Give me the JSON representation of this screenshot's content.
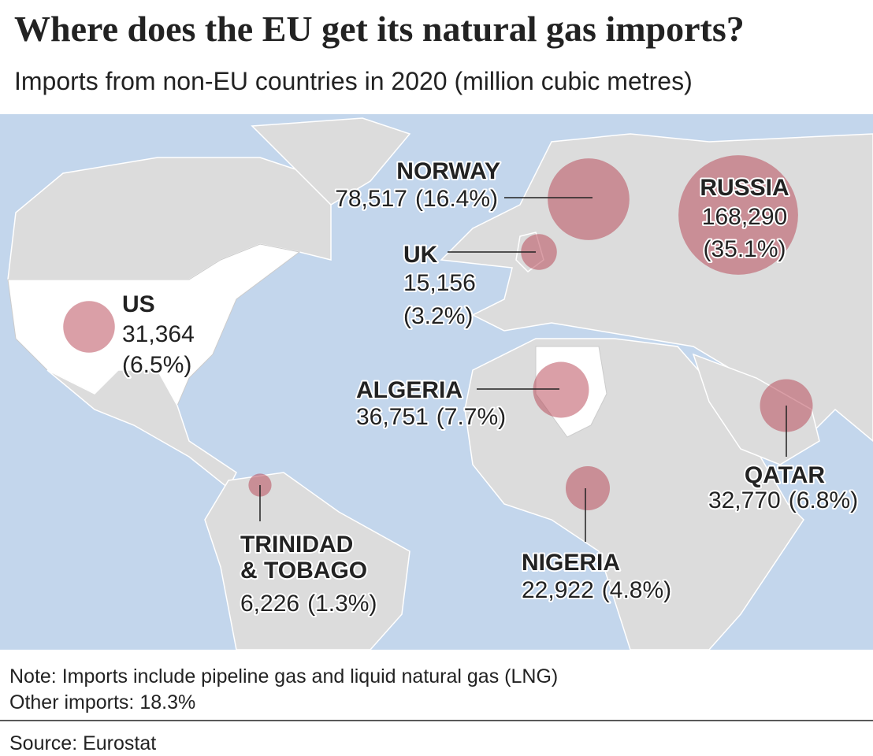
{
  "header": {
    "title": "Where does the EU get its natural gas imports?",
    "subtitle": "Imports from non-EU countries in 2020 (million cubic metres)"
  },
  "map": {
    "bubble_color": "#b5404f",
    "countries": [
      {
        "name": [
          "NORWAY"
        ],
        "value": 78517,
        "amount": "78,517",
        "share": "(16.4%)"
      },
      {
        "name": [
          "RUSSIA"
        ],
        "value": 168290,
        "amount": "168,290",
        "share": "(35.1%)"
      },
      {
        "name": [
          "UK"
        ],
        "value": 15156,
        "amount": "15,156",
        "share": "(3.2%)"
      },
      {
        "name": [
          "US"
        ],
        "value": 31364,
        "amount": "31,364",
        "share": "(6.5%)"
      },
      {
        "name": [
          "ALGERIA"
        ],
        "value": 36751,
        "amount": "36,751",
        "share": "(7.7%)"
      },
      {
        "name": [
          "QATAR"
        ],
        "value": 32770,
        "amount": "32,770",
        "share": "(6.8%)"
      },
      {
        "name": [
          "NIGERIA"
        ],
        "value": 22922,
        "amount": "22,922",
        "share": "(4.8%)"
      },
      {
        "name": [
          "TRINIDAD",
          "& TOBAGO"
        ],
        "value": 6226,
        "amount": "6,226",
        "share": "(1.3%)"
      }
    ]
  },
  "footer": {
    "note": "Note: Imports include pipeline gas and liquid natural gas (LNG)",
    "other": "Other imports: 18.3%",
    "source": "Source: Eurostat"
  }
}
